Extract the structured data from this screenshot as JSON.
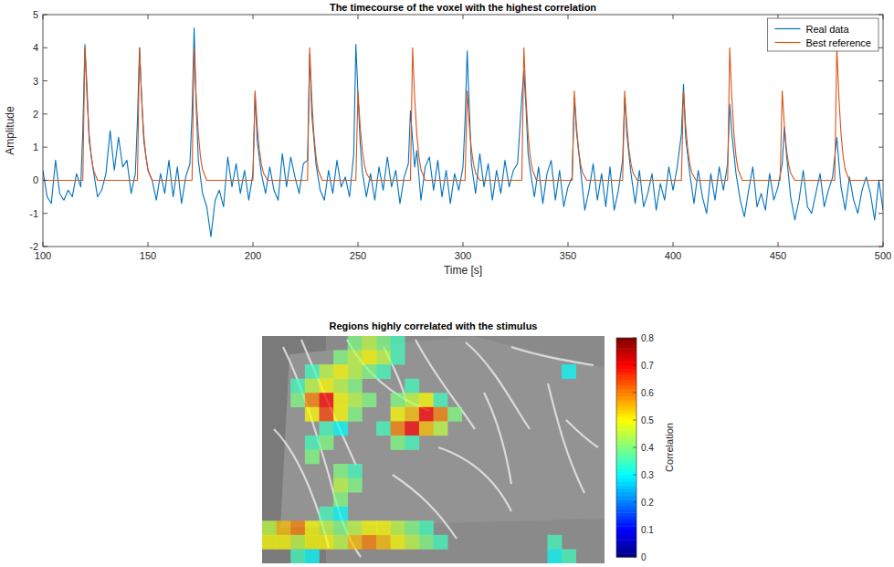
{
  "chart_data": [
    {
      "type": "line",
      "title": "The timecourse of the voxel with the highest correlation",
      "x_label": "Time [s]",
      "y_label": "Amplitude",
      "xlim": [
        100,
        500
      ],
      "xticks": [
        100,
        150,
        200,
        250,
        300,
        350,
        400,
        450,
        500
      ],
      "ylim": [
        -2,
        5
      ],
      "yticks": [
        -2,
        -1,
        0,
        1,
        2,
        3,
        4,
        5
      ],
      "grid": false,
      "legend": "upper right",
      "series": [
        {
          "name": "Real data",
          "color": "#0072bd",
          "x": [
            100,
            102,
            104,
            106,
            108,
            110,
            112,
            114,
            116,
            118,
            119,
            120,
            121,
            122,
            124,
            126,
            128,
            130,
            132,
            134,
            136,
            138,
            140,
            142,
            144,
            145,
            146,
            147,
            148,
            150,
            152,
            154,
            156,
            158,
            160,
            162,
            164,
            166,
            168,
            170,
            171,
            172,
            173,
            174,
            176,
            178,
            180,
            182,
            184,
            186,
            188,
            190,
            192,
            194,
            196,
            198,
            200,
            201,
            202,
            204,
            206,
            208,
            210,
            212,
            214,
            216,
            218,
            220,
            222,
            224,
            226,
            227,
            228,
            230,
            232,
            234,
            236,
            238,
            240,
            242,
            244,
            246,
            248,
            249,
            250,
            251,
            252,
            254,
            256,
            258,
            260,
            262,
            264,
            266,
            268,
            270,
            272,
            274,
            275,
            276,
            277,
            278,
            280,
            282,
            284,
            286,
            288,
            290,
            292,
            294,
            296,
            298,
            300,
            301,
            302,
            303,
            304,
            306,
            308,
            310,
            312,
            314,
            316,
            318,
            320,
            322,
            324,
            326,
            328,
            329,
            330,
            331,
            332,
            334,
            336,
            338,
            340,
            342,
            344,
            346,
            348,
            350,
            352,
            353,
            354,
            356,
            358,
            360,
            362,
            364,
            366,
            368,
            370,
            372,
            374,
            376,
            377,
            378,
            380,
            382,
            384,
            386,
            388,
            390,
            392,
            394,
            396,
            398,
            400,
            402,
            404,
            405,
            406,
            408,
            410,
            412,
            414,
            416,
            418,
            420,
            422,
            424,
            426,
            427,
            428,
            430,
            432,
            434,
            436,
            438,
            440,
            442,
            444,
            446,
            448,
            450,
            452,
            453,
            454,
            456,
            458,
            460,
            462,
            464,
            466,
            468,
            470,
            472,
            474,
            476,
            478,
            479,
            480,
            482,
            484,
            486,
            488,
            490,
            492,
            494,
            496,
            498,
            500
          ],
          "values": [
            0.3,
            -0.5,
            -0.7,
            0.6,
            -0.4,
            -0.6,
            -0.3,
            -0.5,
            0.2,
            -0.2,
            1.5,
            4.1,
            2.8,
            1.2,
            0.3,
            -0.5,
            -0.3,
            0.2,
            1.5,
            0.3,
            1.3,
            0.4,
            0.6,
            -0.4,
            0.2,
            1.8,
            4.0,
            2.5,
            1.2,
            0.3,
            0,
            -0.6,
            0.2,
            -0.4,
            0.6,
            -0.5,
            0.4,
            -0.7,
            0.1,
            0.5,
            2.0,
            4.6,
            2.2,
            0.6,
            -0.4,
            -0.8,
            -1.7,
            -0.6,
            -0.3,
            -0.8,
            0.7,
            -0.2,
            0.5,
            -0.4,
            0.3,
            -0.6,
            0.2,
            2.6,
            1.2,
            0.2,
            -0.4,
            0.4,
            -0.3,
            -0.6,
            0.8,
            -0.2,
            0.7,
            0.1,
            -0.4,
            0.5,
            0.6,
            3.8,
            2.0,
            0.5,
            -0.3,
            -0.6,
            0.3,
            -0.4,
            0.6,
            -0.2,
            0.1,
            -0.5,
            0.8,
            4.1,
            2.6,
            1.2,
            0.3,
            -0.5,
            0.2,
            -0.6,
            0.4,
            -0.3,
            0.7,
            -0.2,
            0.3,
            -0.7,
            0.1,
            0.5,
            2.1,
            1.2,
            0.4,
            0.9,
            -0.6,
            0.4,
            0.7,
            -0.3,
            0.6,
            -0.5,
            0.3,
            -0.7,
            0.2,
            -0.3,
            0.4,
            1.8,
            3.9,
            2.2,
            0.5,
            -0.4,
            0.8,
            -0.2,
            0.5,
            -0.6,
            0.3,
            -0.4,
            0.6,
            -0.2,
            0.3,
            0.5,
            2.5,
            3.3,
            2.2,
            0.8,
            0.3,
            -0.5,
            0.4,
            -0.7,
            0.2,
            0.6,
            -0.6,
            0.3,
            -0.8,
            -0.2,
            0.1,
            2.5,
            1.5,
            0.3,
            -0.9,
            -0.3,
            0.5,
            -0.6,
            0.2,
            -0.8,
            0.4,
            -0.9,
            -0.3,
            0.6,
            2.5,
            1.4,
            0.2,
            -0.7,
            0.3,
            -0.8,
            -0.4,
            0.2,
            -0.9,
            -0.1,
            -0.6,
            0.4,
            -0.3,
            0.4,
            1.4,
            2.9,
            1.3,
            0.2,
            -0.7,
            0.3,
            -0.5,
            -1.0,
            0.2,
            -0.6,
            0.4,
            -0.3,
            0.5,
            2.3,
            1.4,
            0.2,
            -0.6,
            -1.1,
            -0.3,
            0.4,
            -0.8,
            -0.4,
            -0.9,
            0.2,
            -0.6,
            -0.2,
            0.5,
            1.6,
            0.8,
            -0.5,
            -1.2,
            -0.6,
            0.3,
            -0.8,
            -1.0,
            -0.4,
            0.2,
            -0.8,
            -0.3,
            0.1,
            1.3,
            0.5,
            -0.2,
            -0.9,
            0.1,
            -0.6,
            -1.0,
            -0.3,
            0.1,
            -0.4,
            -1.2,
            0.0,
            -0.9
          ]
        },
        {
          "name": "Best reference",
          "color": "#d95319",
          "x": [
            100,
            119,
            120,
            121,
            122,
            123,
            124,
            126,
            145,
            146,
            147,
            148,
            149,
            150,
            152,
            171,
            172,
            173,
            174,
            175,
            176,
            178,
            200,
            201,
            202,
            203,
            204,
            205,
            207,
            226,
            227,
            228,
            229,
            230,
            231,
            233,
            249,
            250,
            251,
            252,
            253,
            254,
            256,
            275,
            276,
            277,
            278,
            279,
            280,
            282,
            301,
            302,
            303,
            304,
            305,
            306,
            308,
            328,
            329,
            330,
            331,
            332,
            333,
            335,
            352,
            353,
            354,
            355,
            356,
            357,
            359,
            376,
            377,
            378,
            379,
            380,
            381,
            383,
            404,
            405,
            406,
            407,
            408,
            409,
            411,
            426,
            427,
            428,
            429,
            430,
            431,
            433,
            451,
            452,
            453,
            454,
            455,
            456,
            458,
            477,
            478,
            479,
            480,
            481,
            482,
            484,
            500
          ],
          "values": [
            0,
            0,
            4.0,
            2.48,
            1.4,
            0.72,
            0.32,
            0,
            0,
            4.0,
            2.48,
            1.4,
            0.72,
            0.32,
            0,
            0,
            4.0,
            2.48,
            1.4,
            0.72,
            0.32,
            0,
            0,
            2.7,
            1.67,
            0.95,
            0.49,
            0.22,
            0,
            0,
            4.0,
            2.48,
            1.4,
            0.72,
            0.32,
            0,
            0,
            2.7,
            1.67,
            0.95,
            0.49,
            0.22,
            0,
            0,
            4.0,
            2.48,
            1.4,
            0.72,
            0.32,
            0,
            0,
            2.7,
            1.67,
            0.95,
            0.49,
            0.22,
            0,
            0,
            4.0,
            2.48,
            1.4,
            0.72,
            0.32,
            0,
            0,
            2.7,
            1.67,
            0.95,
            0.49,
            0.22,
            0,
            0,
            2.7,
            1.67,
            0.95,
            0.49,
            0.22,
            0,
            0,
            2.7,
            1.67,
            0.95,
            0.49,
            0.22,
            0,
            0,
            4.0,
            2.48,
            1.4,
            0.72,
            0.32,
            0,
            0,
            2.7,
            1.67,
            0.95,
            0.49,
            0.22,
            0,
            0,
            4.0,
            2.48,
            1.4,
            0.72,
            0.32,
            0,
            0
          ]
        }
      ]
    },
    {
      "type": "heatmap",
      "title": "Regions highly correlated with the stimulus",
      "cells": [
        [
          null,
          null,
          null,
          null,
          null,
          null,
          0.4,
          0.45,
          0.4,
          0.35,
          null,
          null,
          null,
          null,
          null,
          null,
          null,
          null,
          null,
          null,
          null,
          null,
          null,
          null
        ],
        [
          null,
          null,
          null,
          null,
          null,
          0.4,
          0.45,
          0.5,
          0.45,
          0.35,
          null,
          null,
          null,
          null,
          null,
          null,
          null,
          null,
          null,
          null,
          null,
          null,
          null,
          null
        ],
        [
          null,
          null,
          null,
          0.35,
          0.45,
          0.5,
          0.45,
          0.4,
          0.35,
          null,
          null,
          null,
          null,
          null,
          null,
          null,
          null,
          null,
          null,
          null,
          null,
          0.3,
          null,
          null
        ],
        [
          null,
          null,
          0.35,
          0.45,
          0.5,
          0.45,
          0.4,
          null,
          null,
          null,
          0.35,
          null,
          null,
          null,
          null,
          null,
          null,
          null,
          null,
          null,
          null,
          null,
          null,
          null
        ],
        [
          null,
          null,
          0.4,
          0.6,
          0.7,
          0.5,
          0.45,
          0.4,
          null,
          0.4,
          0.45,
          0.5,
          0.35,
          null,
          null,
          null,
          null,
          null,
          null,
          null,
          null,
          null,
          null,
          null
        ],
        [
          null,
          null,
          null,
          0.5,
          0.65,
          0.5,
          0.4,
          null,
          null,
          0.5,
          0.55,
          0.7,
          0.6,
          0.4,
          null,
          null,
          null,
          null,
          null,
          null,
          null,
          null,
          null,
          null
        ],
        [
          null,
          null,
          null,
          null,
          0.35,
          0.3,
          null,
          null,
          0.35,
          0.6,
          0.7,
          0.55,
          0.45,
          null,
          null,
          null,
          null,
          null,
          null,
          null,
          null,
          null,
          null,
          null
        ],
        [
          null,
          null,
          null,
          0.35,
          0.4,
          null,
          null,
          null,
          null,
          0.4,
          0.35,
          null,
          null,
          null,
          null,
          null,
          null,
          null,
          null,
          null,
          null,
          null,
          null,
          null
        ],
        [
          null,
          null,
          null,
          0.4,
          null,
          null,
          null,
          null,
          null,
          null,
          null,
          null,
          null,
          null,
          null,
          null,
          null,
          null,
          null,
          null,
          null,
          null,
          null,
          null
        ],
        [
          null,
          null,
          null,
          null,
          null,
          0.4,
          0.35,
          null,
          null,
          null,
          null,
          null,
          null,
          null,
          null,
          null,
          null,
          null,
          null,
          null,
          null,
          null,
          null,
          null
        ],
        [
          null,
          null,
          null,
          null,
          null,
          0.45,
          0.4,
          null,
          null,
          null,
          null,
          null,
          null,
          null,
          null,
          null,
          null,
          null,
          null,
          null,
          null,
          null,
          null,
          null
        ],
        [
          null,
          null,
          null,
          null,
          null,
          0.4,
          null,
          null,
          null,
          null,
          null,
          null,
          null,
          null,
          null,
          null,
          null,
          null,
          null,
          null,
          null,
          null,
          null,
          null
        ],
        [
          null,
          null,
          null,
          null,
          0.35,
          0.3,
          null,
          null,
          null,
          null,
          null,
          null,
          null,
          null,
          null,
          null,
          null,
          null,
          null,
          null,
          null,
          null,
          null,
          null
        ],
        [
          0.45,
          0.55,
          0.6,
          0.5,
          0.45,
          0.4,
          0.45,
          0.5,
          0.5,
          0.45,
          0.4,
          0.35,
          null,
          null,
          null,
          null,
          null,
          null,
          null,
          null,
          null,
          null,
          null,
          null
        ],
        [
          0.5,
          0.5,
          0.45,
          0.5,
          0.5,
          0.45,
          0.55,
          0.6,
          0.55,
          0.5,
          0.45,
          0.4,
          0.35,
          null,
          null,
          null,
          null,
          null,
          null,
          null,
          0.35,
          null,
          null,
          null
        ],
        [
          null,
          null,
          0.35,
          0.3,
          null,
          null,
          null,
          null,
          null,
          null,
          null,
          null,
          null,
          null,
          null,
          null,
          null,
          null,
          null,
          null,
          0.3,
          0.35,
          null,
          null
        ]
      ],
      "colorbar": {
        "label": "Correlation",
        "range": [
          0,
          0.8
        ],
        "ticks": [
          0,
          0.1,
          0.2,
          0.3,
          0.4,
          0.5,
          0.6,
          0.7,
          0.8
        ]
      }
    }
  ]
}
